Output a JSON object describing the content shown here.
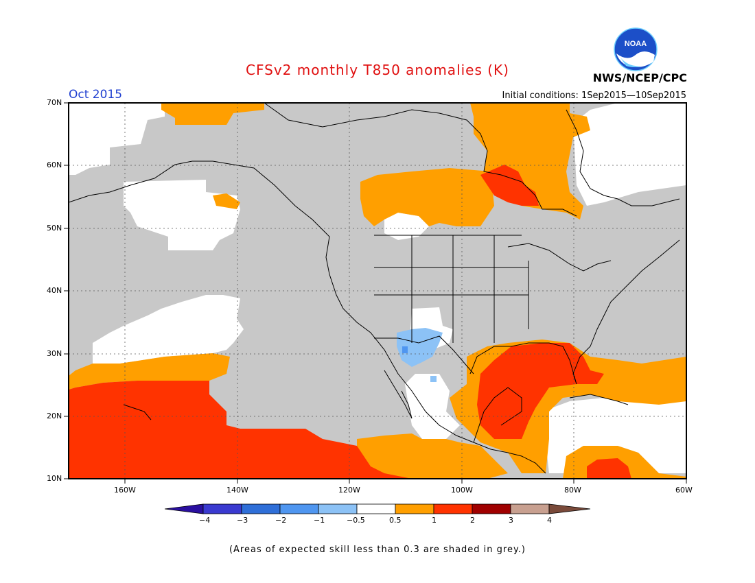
{
  "title": "CFSv2 monthly T850 anomalies (K)",
  "valid_month": "Oct 2015",
  "initial_conditions": "Initial conditions: 1Sep2015—10Sep2015",
  "agency": "NWS/NCEP/CPC",
  "logo_text": "NOAA",
  "footnote": "(Areas of expected skill less than 0.3 are shaded in grey.)",
  "lat_labels": [
    "70N",
    "60N",
    "50N",
    "40N",
    "30N",
    "20N",
    "10N"
  ],
  "lon_labels": [
    "160W",
    "140W",
    "120W",
    "100W",
    "80W",
    "60W"
  ],
  "colorbar": {
    "labels": [
      "−4",
      "−3",
      "−2",
      "−1",
      "−0.5",
      "0.5",
      "1",
      "2",
      "3",
      "4"
    ],
    "colors": [
      "#2a0fa0",
      "#3a3ad0",
      "#2f6fd8",
      "#4f96f0",
      "#8cc2f6",
      "#ffffff",
      "#ff9f00",
      "#ff3300",
      "#a00000",
      "#c8a090",
      "#7a4a3a"
    ]
  },
  "colors": {
    "grey": "#c8c8c8",
    "white": "#ffffff",
    "orange": "#ff9f00",
    "red": "#ff3300",
    "lightblue": "#8cc2f6",
    "blue": "#4f96f0",
    "title": "#e01010",
    "month": "#1f3fd0"
  }
}
